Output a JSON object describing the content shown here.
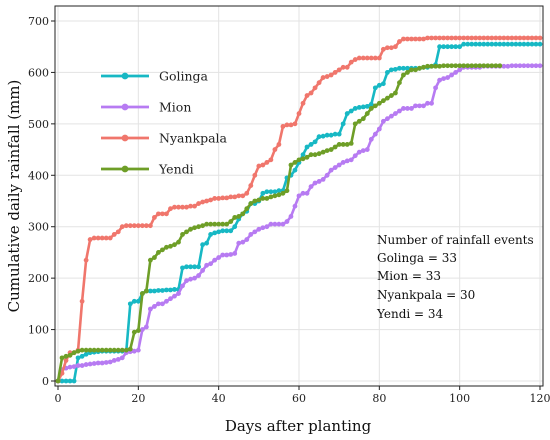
{
  "chart_data": {
    "type": "line",
    "xlabel": "Days after planting",
    "ylabel": "Cumulative daily rainfall (mm)",
    "xlim": [
      0,
      120
    ],
    "ylim": [
      0,
      700
    ],
    "xticks": [
      "0",
      "20",
      "40",
      "60",
      "80",
      "100",
      "120"
    ],
    "yticks": [
      "0",
      "100",
      "200",
      "300",
      "400",
      "500",
      "600",
      "700"
    ],
    "grid": true,
    "legend_position": "top-left",
    "series": [
      {
        "name": "Golinga",
        "color": "#17B8C4",
        "x": [
          0,
          1,
          2,
          3,
          4,
          5,
          6,
          7,
          8,
          9,
          10,
          11,
          12,
          13,
          14,
          15,
          16,
          17,
          18,
          19,
          20,
          21,
          22,
          23,
          24,
          25,
          26,
          27,
          28,
          29,
          30,
          31,
          32,
          33,
          34,
          35,
          36,
          37,
          38,
          39,
          40,
          41,
          42,
          43,
          44,
          45,
          46,
          47,
          48,
          49,
          50,
          51,
          52,
          53,
          54,
          55,
          56,
          57,
          58,
          59,
          60,
          61,
          62,
          63,
          64,
          65,
          66,
          67,
          68,
          69,
          70,
          71,
          72,
          73,
          74,
          75,
          76,
          77,
          78,
          79,
          80,
          81,
          82,
          83,
          84,
          85,
          86,
          87,
          88,
          89,
          90,
          91,
          92,
          93,
          94,
          95,
          96,
          97,
          98,
          99,
          100,
          101,
          102,
          103,
          104,
          105,
          106,
          107,
          108,
          109,
          110,
          111,
          112,
          113,
          114,
          115,
          116,
          117,
          118,
          119,
          120
        ],
        "values": [
          0,
          0,
          0,
          0,
          0,
          45,
          48,
          52,
          55,
          56,
          57,
          58,
          58,
          58,
          58,
          58,
          58,
          58,
          150,
          155,
          155,
          170,
          175,
          175,
          175,
          176,
          176,
          177,
          177,
          178,
          178,
          220,
          222,
          222,
          222,
          222,
          265,
          268,
          285,
          288,
          290,
          292,
          292,
          292,
          300,
          315,
          325,
          330,
          345,
          345,
          350,
          365,
          368,
          368,
          368,
          370,
          370,
          395,
          400,
          410,
          425,
          440,
          455,
          460,
          465,
          475,
          476,
          478,
          478,
          480,
          480,
          500,
          520,
          525,
          530,
          532,
          533,
          534,
          538,
          570,
          575,
          578,
          600,
          605,
          606,
          608,
          608,
          608,
          608,
          608,
          608,
          610,
          610,
          612,
          615,
          650,
          650,
          650,
          650,
          650,
          650,
          655,
          655,
          655,
          655,
          655,
          655,
          655,
          655,
          655,
          655,
          655,
          655,
          655,
          655,
          655,
          655,
          655,
          655,
          655,
          655
        ]
      },
      {
        "name": "Mion",
        "color": "#B77BF2",
        "x": [
          0,
          1,
          2,
          3,
          4,
          5,
          6,
          7,
          8,
          9,
          10,
          11,
          12,
          13,
          14,
          15,
          16,
          17,
          18,
          19,
          20,
          21,
          22,
          23,
          24,
          25,
          26,
          27,
          28,
          29,
          30,
          31,
          32,
          33,
          34,
          35,
          36,
          37,
          38,
          39,
          40,
          41,
          42,
          43,
          44,
          45,
          46,
          47,
          48,
          49,
          50,
          51,
          52,
          53,
          54,
          55,
          56,
          57,
          58,
          59,
          60,
          61,
          62,
          63,
          64,
          65,
          66,
          67,
          68,
          69,
          70,
          71,
          72,
          73,
          74,
          75,
          76,
          77,
          78,
          79,
          80,
          81,
          82,
          83,
          84,
          85,
          86,
          87,
          88,
          89,
          90,
          91,
          92,
          93,
          94,
          95,
          96,
          97,
          98,
          99,
          100,
          101,
          102,
          103,
          104,
          105,
          106,
          107,
          108,
          109,
          110,
          111,
          112,
          113,
          114,
          115,
          116,
          117,
          118,
          119,
          120
        ],
        "values": [
          0,
          22,
          25,
          27,
          28,
          30,
          30,
          32,
          33,
          34,
          35,
          35,
          36,
          37,
          40,
          42,
          45,
          55,
          57,
          58,
          60,
          100,
          105,
          140,
          145,
          150,
          150,
          155,
          160,
          165,
          170,
          185,
          195,
          198,
          200,
          205,
          215,
          225,
          228,
          235,
          240,
          245,
          245,
          246,
          248,
          268,
          270,
          275,
          285,
          290,
          295,
          298,
          300,
          305,
          305,
          305,
          305,
          310,
          320,
          340,
          360,
          365,
          365,
          378,
          385,
          388,
          392,
          400,
          410,
          415,
          420,
          425,
          428,
          430,
          438,
          445,
          448,
          450,
          470,
          480,
          490,
          505,
          510,
          515,
          520,
          525,
          530,
          530,
          530,
          535,
          535,
          535,
          540,
          540,
          570,
          585,
          588,
          590,
          595,
          600,
          605,
          610,
          610,
          610,
          610,
          610,
          612,
          612,
          612,
          612,
          612,
          612,
          612,
          613,
          613,
          613,
          613,
          613,
          613,
          613,
          613
        ]
      },
      {
        "name": "Nyankpala",
        "color": "#F0766C",
        "x": [
          0,
          1,
          2,
          3,
          4,
          5,
          6,
          7,
          8,
          9,
          10,
          11,
          12,
          13,
          14,
          15,
          16,
          17,
          18,
          19,
          20,
          21,
          22,
          23,
          24,
          25,
          26,
          27,
          28,
          29,
          30,
          31,
          32,
          33,
          34,
          35,
          36,
          37,
          38,
          39,
          40,
          41,
          42,
          43,
          44,
          45,
          46,
          47,
          48,
          49,
          50,
          51,
          52,
          53,
          54,
          55,
          56,
          57,
          58,
          59,
          60,
          61,
          62,
          63,
          64,
          65,
          66,
          67,
          68,
          69,
          70,
          71,
          72,
          73,
          74,
          75,
          76,
          77,
          78,
          79,
          80,
          81,
          82,
          83,
          84,
          85,
          86,
          87,
          88,
          89,
          90,
          91,
          92,
          93,
          94,
          95,
          96,
          97,
          98,
          99,
          100,
          101,
          102,
          103,
          104,
          105,
          106,
          107,
          108,
          109,
          110,
          111,
          112,
          113,
          114,
          115,
          116,
          117,
          118,
          119,
          120
        ],
        "values": [
          0,
          15,
          40,
          55,
          55,
          60,
          155,
          235,
          275,
          278,
          278,
          278,
          278,
          278,
          285,
          290,
          300,
          302,
          302,
          302,
          302,
          302,
          302,
          302,
          318,
          325,
          325,
          325,
          335,
          338,
          338,
          338,
          338,
          340,
          340,
          345,
          348,
          350,
          352,
          355,
          355,
          356,
          356,
          358,
          358,
          360,
          360,
          365,
          380,
          400,
          418,
          420,
          425,
          430,
          450,
          460,
          495,
          498,
          498,
          500,
          520,
          540,
          555,
          560,
          570,
          580,
          590,
          592,
          595,
          600,
          605,
          610,
          610,
          620,
          625,
          628,
          628,
          628,
          628,
          628,
          628,
          645,
          648,
          648,
          650,
          660,
          665,
          665,
          665,
          665,
          665,
          665,
          667,
          667,
          667,
          667,
          667,
          667,
          667,
          667,
          667,
          667,
          667,
          667,
          667,
          667,
          667,
          667,
          667,
          667,
          667,
          667,
          667,
          667,
          667,
          667,
          667,
          667,
          667,
          667,
          667
        ]
      },
      {
        "name": "Yendi",
        "color": "#6E9E27",
        "x": [
          0,
          1,
          2,
          3,
          4,
          5,
          6,
          7,
          8,
          9,
          10,
          11,
          12,
          13,
          14,
          15,
          16,
          17,
          18,
          19,
          20,
          21,
          22,
          23,
          24,
          25,
          26,
          27,
          28,
          29,
          30,
          31,
          32,
          33,
          34,
          35,
          36,
          37,
          38,
          39,
          40,
          41,
          42,
          43,
          44,
          45,
          46,
          47,
          48,
          49,
          50,
          51,
          52,
          53,
          54,
          55,
          56,
          57,
          58,
          59,
          60,
          61,
          62,
          63,
          64,
          65,
          66,
          67,
          68,
          69,
          70,
          71,
          72,
          73,
          74,
          75,
          76,
          77,
          78,
          79,
          80,
          81,
          82,
          83,
          84,
          85,
          86,
          87,
          88,
          89,
          90,
          91,
          92,
          93,
          94,
          95,
          96,
          97,
          98,
          99,
          100,
          101,
          102,
          103,
          104,
          105,
          106,
          107,
          108,
          109,
          110
        ],
        "values": [
          0,
          45,
          48,
          50,
          55,
          58,
          60,
          60,
          60,
          60,
          60,
          60,
          60,
          60,
          60,
          60,
          60,
          60,
          62,
          95,
          98,
          170,
          175,
          235,
          240,
          250,
          255,
          260,
          262,
          265,
          270,
          285,
          290,
          295,
          298,
          300,
          302,
          305,
          305,
          305,
          305,
          305,
          305,
          310,
          318,
          320,
          325,
          335,
          345,
          350,
          352,
          355,
          355,
          358,
          360,
          362,
          365,
          370,
          420,
          425,
          430,
          432,
          435,
          440,
          440,
          442,
          445,
          448,
          450,
          455,
          460,
          460,
          460,
          462,
          500,
          505,
          510,
          520,
          530,
          535,
          540,
          545,
          550,
          555,
          560,
          580,
          595,
          600,
          605,
          605,
          608,
          610,
          612,
          612,
          612,
          612,
          613,
          613,
          613,
          613,
          613,
          613,
          613,
          613,
          613,
          613,
          613,
          613,
          613,
          613,
          613
        ]
      }
    ],
    "annotation": {
      "title": "Number of rainfall events",
      "lines": [
        "Golinga = 33",
        "Mion = 33",
        "Nyankpala = 30",
        "Yendi = 34"
      ]
    }
  }
}
